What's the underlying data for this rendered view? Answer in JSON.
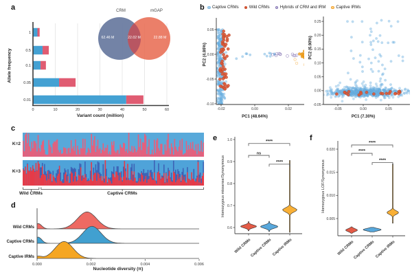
{
  "panel_labels": {
    "a": "a",
    "b": "b",
    "c": "c",
    "d": "d",
    "e": "e",
    "f": "f"
  },
  "legend_b": {
    "items": [
      {
        "label": "Captive CRMs",
        "fill": "#a9cfeb",
        "edge": "#85bce2"
      },
      {
        "label": "Wild CRMs",
        "fill": "#e05a38",
        "edge": "#c74c2b"
      },
      {
        "label": "Hybrids of CRM and IRM",
        "fill": "#cdc5e2",
        "edge": "#8375b2"
      },
      {
        "label": "Captive IRMs",
        "fill": "#fbd191",
        "edge": "#f2a32b"
      }
    ]
  },
  "chart_data": [
    {
      "panel": "a",
      "type": "bar",
      "orientation": "horizontal",
      "stacked": true,
      "xlabel": "Variant count (million)",
      "ylabel": "Allele frequency",
      "categories": [
        "1",
        "0.5",
        "0.1",
        "0.05",
        "0.01"
      ],
      "series": [
        {
          "name": "blue segment",
          "color": "#44a1d3",
          "values": [
            2.0,
            4.3,
            3.4,
            11.7,
            41.8
          ]
        },
        {
          "name": "red segment",
          "color": "#e05c72",
          "values": [
            1.0,
            2.8,
            2.4,
            7.4,
            7.7
          ]
        }
      ],
      "xticks": [
        [
          0,
          "0"
        ],
        [
          10,
          "10"
        ],
        [
          20,
          "20"
        ],
        [
          30,
          "30"
        ],
        [
          40,
          "40"
        ],
        [
          50,
          "50"
        ],
        [
          60,
          "60"
        ]
      ],
      "xlim": [
        0,
        60
      ],
      "grid": true
    },
    {
      "panel": "a",
      "type": "venn",
      "sets": [
        {
          "label": "CRM",
          "value": "62.46 M",
          "color": "#6b7ca1"
        },
        {
          "label": "mGAP",
          "value": "22.88 M",
          "color": "#e8694f"
        }
      ],
      "overlap_value": "22.02 M",
      "overlap_color": "#b65562"
    },
    {
      "panel": "b",
      "type": "scatter",
      "xlabel": "PC1 (48.64%)",
      "ylabel": "PC2 (4.86%)",
      "xticks": [
        [
          -0.02,
          "-0.02"
        ],
        [
          0,
          "0.00"
        ],
        [
          0.02,
          "0.02"
        ]
      ],
      "yticks": [
        [
          0.05,
          "0.05"
        ],
        [
          0,
          "0.00"
        ],
        [
          -0.05,
          "-0.05"
        ],
        [
          -0.1,
          "-0.10"
        ]
      ],
      "xlim": [
        -0.0265,
        0.0355
      ],
      "ylim": [
        -0.113,
        0.058
      ],
      "clusters": [
        {
          "name": "Captive CRMs",
          "color": "#6fb3e3",
          "edge": "#5da4d8",
          "opacity": 0.45,
          "r": 1.7,
          "n": 300,
          "x": {
            "dist": "normal",
            "mu": -0.0205,
            "sd": 0.0013
          },
          "y": {
            "dist": "uniform",
            "lo": -0.102,
            "hi": 0.051
          }
        },
        {
          "name": "Captive CRMs mid",
          "color": "#6fb3e3",
          "edge": "#5da4d8",
          "opacity": 0.5,
          "r": 1.7,
          "n": 12,
          "x": {
            "dist": "uniform",
            "lo": -0.013,
            "hi": 0.012
          },
          "y": {
            "dist": "normal",
            "mu": -0.001,
            "sd": 0.0035
          }
        },
        {
          "name": "Wild CRMs",
          "color": "#dd5a3a",
          "edge": "#b34425",
          "opacity": 0.9,
          "r": 2.1,
          "n": 55,
          "x": {
            "dist": "normal",
            "mu": -0.0183,
            "sd": 0.0014
          },
          "y": {
            "dist": "uniform",
            "lo": -0.072,
            "hi": 0.051
          }
        },
        {
          "name": "Hybrids of CRM and IRM",
          "color": "none",
          "edge": "#7a68ad",
          "opacity": 0.9,
          "r": 2.0,
          "n": 11,
          "x": {
            "dist": "uniform",
            "lo": 0.003,
            "hi": 0.027
          },
          "y": {
            "dist": "normal",
            "mu": 0.0,
            "sd": 0.0035
          }
        },
        {
          "name": "Captive IRMs",
          "color": "#f4a320",
          "edge": "#d88a10",
          "opacity": 0.85,
          "r": 2.0,
          "n": 65,
          "x": {
            "dist": "normal",
            "mu": 0.0313,
            "sd": 0.0016
          },
          "y": {
            "dist": "normal",
            "mu": 0.0,
            "sd": 0.005
          }
        },
        {
          "name": "Captive IRMs outliers",
          "color": "none",
          "edge": "#f2a32b",
          "opacity": 0.8,
          "r": 1.8,
          "n": 5,
          "x": {
            "dist": "normal",
            "mu": 0.03,
            "sd": 0.003
          },
          "y": {
            "dist": "uniform",
            "lo": -0.025,
            "hi": -0.005
          }
        }
      ]
    },
    {
      "panel": "b",
      "type": "scatter",
      "xlabel": "PC1 (7.30%)",
      "ylabel": "PC2 (6.90%)",
      "xticks": [
        [
          -0.05,
          "-0.05"
        ],
        [
          0,
          "0.00"
        ],
        [
          0.05,
          "0.05"
        ]
      ],
      "yticks": [
        [
          0.25,
          "0.25"
        ],
        [
          0.2,
          "0.20"
        ],
        [
          0.15,
          "0.15"
        ],
        [
          0.1,
          "0.10"
        ],
        [
          0.05,
          "0.05"
        ],
        [
          0,
          "0.00"
        ],
        [
          -0.05,
          "-0.05"
        ]
      ],
      "xlim": [
        -0.088,
        0.098
      ],
      "ylim": [
        -0.055,
        0.262
      ],
      "clusters": [
        {
          "name": "Captive CRMs band",
          "color": "#6fb3e3",
          "edge": "#5da4d8",
          "opacity": 0.4,
          "r": 1.7,
          "n": 620,
          "x": {
            "dist": "normal",
            "mu": 0.002,
            "sd": 0.034,
            "clip": [
              -0.082,
              0.092
            ]
          },
          "y": {
            "dist": "normal",
            "mu": -0.006,
            "sd": 0.0075
          }
        },
        {
          "name": "Captive CRMs halo",
          "color": "#6fb3e3",
          "edge": "#5da4d8",
          "opacity": 0.4,
          "r": 1.7,
          "n": 80,
          "x": {
            "dist": "normal",
            "mu": 0.0,
            "sd": 0.04,
            "clip": [
              -0.08,
              0.09
            ]
          },
          "y": {
            "dist": "normal",
            "mu": -0.002,
            "sd": 0.017
          }
        },
        {
          "name": "Captive CRMs upper",
          "color": "#6fb3e3",
          "edge": "#5da4d8",
          "opacity": 0.45,
          "r": 1.7,
          "n": 55,
          "x": {
            "dist": "normal",
            "mu": 0.018,
            "sd": 0.028,
            "clip": [
              -0.05,
              0.08
            ]
          },
          "y": {
            "dist": "uniform",
            "lo": 0.02,
            "hi": 0.255
          }
        },
        {
          "name": "Wild CRMs",
          "color": "#dd5a3a",
          "edge": "#b34425",
          "opacity": 0.9,
          "r": 2.1,
          "n": 22,
          "x": {
            "dist": "uniform",
            "lo": -0.055,
            "hi": 0.072
          },
          "y": {
            "dist": "normal",
            "mu": -0.008,
            "sd": 0.004
          }
        }
      ]
    },
    {
      "panel": "c",
      "type": "structure",
      "n_individuals": 170,
      "seed": 31,
      "rows": [
        {
          "label": "K=2",
          "palette": {
            "bg": "#58a9da",
            "red": "#e5607c"
          }
        },
        {
          "label": "K=3",
          "palette": {
            "bg": "#4fa3d9",
            "red": "#e73a47",
            "darkblue": "#3d62b5"
          }
        }
      ],
      "groups": [
        {
          "label": "Wild CRMs",
          "count": 16
        },
        {
          "label": "Captive CRMs",
          "count": 154
        }
      ]
    },
    {
      "panel": "d",
      "type": "area",
      "xlabel": "Nucleotide diversity (π)",
      "xticks": [
        [
          0,
          "0.000"
        ],
        [
          0.002,
          "0.002"
        ],
        [
          0.004,
          "0.004"
        ],
        [
          0.006,
          "0.006"
        ]
      ],
      "xlim": [
        0,
        0.006
      ],
      "series": [
        {
          "name": "Wild CRMs",
          "color": "#ee6a63",
          "mu": 0.00185,
          "sigma": 0.0005,
          "spike": 0.3
        },
        {
          "name": "Captive CRMs",
          "color": "#41a0d0",
          "mu": 0.00203,
          "sigma": 0.00048,
          "spike": 0.35
        },
        {
          "name": "Captive IRMs",
          "color": "#f5a623",
          "mu": 0.001,
          "sigma": 0.00047,
          "spike": 0.12
        }
      ]
    },
    {
      "panel": "e",
      "type": "violin",
      "ylabel": "Homozygous missense/Synonymous",
      "yticks": [
        [
          1.0,
          "1.0"
        ],
        [
          0.9,
          "0.9"
        ],
        [
          0.8,
          "0.8"
        ],
        [
          0.7,
          "0.7"
        ],
        [
          0.6,
          "0.6"
        ]
      ],
      "categories": [
        "Wild CRMs",
        "Captive CRMs",
        "Captive IRMs"
      ],
      "violins": [
        {
          "name": "Wild CRMs",
          "color": "#e45b47",
          "median": 0.605,
          "bulge": 0.0095,
          "lo": 0.585,
          "hi": 0.627,
          "maxw": 11.5
        },
        {
          "name": "Captive CRMs",
          "color": "#58a8dc",
          "median": 0.604,
          "bulge": 0.0105,
          "lo": 0.582,
          "hi": 0.628,
          "maxw": 12.5
        },
        {
          "name": "Captive IRMs",
          "color": "#f9b036",
          "median": 0.68,
          "bulge": 0.0135,
          "lo": 0.578,
          "hi": 0.905,
          "maxw": 10.5
        }
      ],
      "significance": [
        {
          "a": 0,
          "b": 2,
          "label": "****",
          "y": 0.982
        },
        {
          "a": 0,
          "b": 1,
          "label": "ns",
          "y": 0.928
        },
        {
          "a": 1,
          "b": 2,
          "label": "****",
          "y": 0.888
        }
      ]
    },
    {
      "panel": "f",
      "type": "violin",
      "ylabel": "Homozygous LOF/Synonymous",
      "yticks": [
        [
          0.02,
          "0.020"
        ],
        [
          0.015,
          "0.015"
        ],
        [
          0.01,
          "0.010"
        ],
        [
          0.005,
          "0.005"
        ]
      ],
      "categories": [
        "Wild CRMs",
        "Captive CRMs",
        "Captive IRMs"
      ],
      "violins": [
        {
          "name": "Wild CRMs",
          "color": "#e45b47",
          "median": 0.0025,
          "bulge": 0.00045,
          "lo": 0.0018,
          "hi": 0.0032,
          "maxw": 8.5
        },
        {
          "name": "Captive CRMs",
          "color": "#58a8dc",
          "median": 0.0026,
          "bulge": 0.00038,
          "lo": 0.0021,
          "hi": 0.0031,
          "maxw": 13
        },
        {
          "name": "Captive IRMs",
          "color": "#f9b036",
          "median": 0.0063,
          "bulge": 0.00055,
          "lo": 0.004,
          "hi": 0.0168,
          "maxw": 8.5
        }
      ],
      "significance": [
        {
          "a": 0,
          "b": 2,
          "label": "****",
          "y": 0.0209
        },
        {
          "a": 0,
          "b": 1,
          "label": "****",
          "y": 0.0191
        },
        {
          "a": 1,
          "b": 2,
          "label": "****",
          "y": 0.0171
        }
      ]
    }
  ]
}
